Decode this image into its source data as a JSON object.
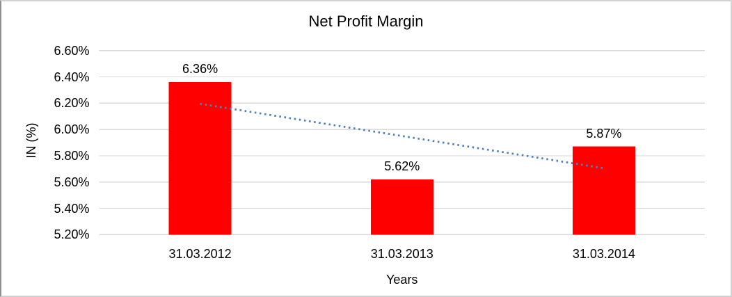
{
  "chart_data": {
    "type": "bar",
    "title": "Net Profit Margin",
    "xlabel": "Years",
    "ylabel": "IN (%)",
    "categories": [
      "31.03.2012",
      "31.03.2013",
      "31.03.2014"
    ],
    "values": [
      6.36,
      5.62,
      5.87
    ],
    "data_labels": [
      "6.36%",
      "5.62%",
      "5.87%"
    ],
    "ylim": [
      5.2,
      6.6
    ],
    "y_ticks": [
      {
        "value": 6.6,
        "label": "6.60%"
      },
      {
        "value": 6.4,
        "label": "6.40%"
      },
      {
        "value": 6.2,
        "label": "6.20%"
      },
      {
        "value": 6.0,
        "label": "6.00%"
      },
      {
        "value": 5.8,
        "label": "5.80%"
      },
      {
        "value": 5.6,
        "label": "5.60%"
      },
      {
        "value": 5.4,
        "label": "5.40%"
      },
      {
        "value": 5.2,
        "label": "5.20%"
      }
    ],
    "grid": true,
    "legend": "none",
    "trendline": {
      "type": "linear",
      "style": "dotted",
      "start_value": 6.195,
      "end_value": 5.705
    },
    "colors": {
      "bar": "#ff0000",
      "gridline": "#d9d9d9",
      "trendline": "#4f81bd",
      "text": "#000000",
      "background": "#ffffff"
    }
  }
}
